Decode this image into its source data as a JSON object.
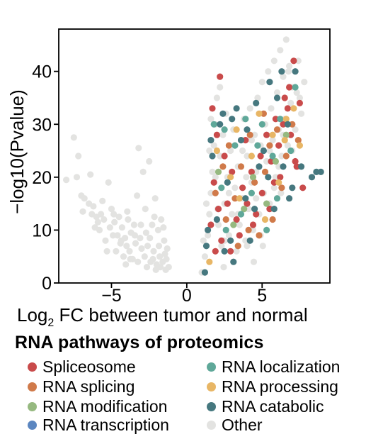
{
  "chart_data": {
    "type": "scatter",
    "xlabel": "Log",
    "xlabel_sub": "2",
    "xlabel_rest": " FC between tumor and normal",
    "ylabel": "−log10(Pvalue)",
    "xlim": [
      -8.5,
      9.5
    ],
    "ylim": [
      0,
      48
    ],
    "xticks": [
      {
        "value": -5,
        "label": "−5"
      },
      {
        "value": 0,
        "label": "0"
      },
      {
        "value": 5,
        "label": "5"
      }
    ],
    "yticks": [
      {
        "value": 0,
        "label": "0"
      },
      {
        "value": 10,
        "label": "10"
      },
      {
        "value": 20,
        "label": "20"
      },
      {
        "value": 30,
        "label": "30"
      },
      {
        "value": 40,
        "label": "40"
      }
    ],
    "legend_title": "RNA pathways of proteomics",
    "legend_placement": "bottom",
    "grid": false,
    "series": [
      {
        "name": "Other",
        "color": "#e3e3e1",
        "points": [
          [
            -8.0,
            19.5
          ],
          [
            -7.5,
            27.5
          ],
          [
            -7.2,
            24
          ],
          [
            -7.0,
            16.5
          ],
          [
            -6.8,
            16
          ],
          [
            -6.5,
            15
          ],
          [
            -6.4,
            20.5
          ],
          [
            -6.3,
            13
          ],
          [
            -6.1,
            10.5
          ],
          [
            -6.0,
            12.5
          ],
          [
            -5.9,
            11.5
          ],
          [
            -5.7,
            13
          ],
          [
            -5.5,
            12
          ],
          [
            -5.4,
            8
          ],
          [
            -5.3,
            6
          ],
          [
            -5.2,
            19
          ],
          [
            -5.1,
            10.5
          ],
          [
            -5.0,
            14
          ],
          [
            -4.9,
            9
          ],
          [
            -4.8,
            11.5
          ],
          [
            -4.7,
            6
          ],
          [
            -4.6,
            9
          ],
          [
            -4.5,
            12.5
          ],
          [
            -4.4,
            7.5
          ],
          [
            -4.3,
            10.5
          ],
          [
            -4.2,
            5
          ],
          [
            -4.1,
            8.5
          ],
          [
            -4.0,
            7
          ],
          [
            -3.9,
            12
          ],
          [
            -3.8,
            6
          ],
          [
            -3.7,
            9.5
          ],
          [
            -3.6,
            4.5
          ],
          [
            -3.5,
            11
          ],
          [
            -3.4,
            7.5
          ],
          [
            -3.3,
            16.5
          ],
          [
            -3.2,
            25.5
          ],
          [
            -3.1,
            8.5
          ],
          [
            -3.0,
            6.5
          ],
          [
            -2.9,
            21
          ],
          [
            -2.8,
            5
          ],
          [
            -2.7,
            9.5
          ],
          [
            -2.6,
            7
          ],
          [
            -2.5,
            23
          ],
          [
            -2.4,
            4
          ],
          [
            -2.3,
            11
          ],
          [
            -2.2,
            6
          ],
          [
            -2.1,
            16
          ],
          [
            -2.0,
            3.5
          ],
          [
            -1.9,
            10
          ],
          [
            -1.8,
            5
          ],
          [
            -1.7,
            12
          ],
          [
            -1.6,
            4
          ],
          [
            -1.5,
            8
          ],
          [
            -1.4,
            2.5
          ],
          [
            -1.3,
            6.5
          ],
          [
            -1.2,
            3
          ],
          [
            -7.3,
            20
          ],
          [
            -6.9,
            13.5
          ],
          [
            -6.2,
            14.5
          ],
          [
            -5.8,
            10
          ],
          [
            -5.6,
            15.5
          ],
          [
            -4.85,
            13
          ],
          [
            -4.35,
            8
          ],
          [
            -3.95,
            13.5
          ],
          [
            -3.45,
            9
          ],
          [
            -3.05,
            11
          ],
          [
            -2.75,
            14
          ],
          [
            -2.45,
            8.5
          ],
          [
            -2.15,
            12.5
          ],
          [
            -1.85,
            7
          ],
          [
            -1.55,
            10.5
          ],
          [
            -1.45,
            5.5
          ],
          [
            -2.25,
            4.5
          ],
          [
            -2.65,
            3
          ],
          [
            -3.25,
            4
          ],
          [
            -2.05,
            2.5
          ],
          [
            -1.75,
            3
          ],
          [
            -1.35,
            4.5
          ],
          [
            -3.75,
            4.5
          ],
          [
            -4.05,
            3.5
          ],
          [
            1.0,
            2
          ],
          [
            1.2,
            5
          ],
          [
            1.4,
            9
          ],
          [
            1.5,
            13
          ],
          [
            1.6,
            17
          ],
          [
            1.7,
            21
          ],
          [
            1.8,
            26
          ],
          [
            1.9,
            30
          ],
          [
            2.0,
            35
          ],
          [
            2.1,
            11
          ],
          [
            2.2,
            24
          ],
          [
            2.3,
            7
          ],
          [
            2.4,
            28
          ],
          [
            2.5,
            15
          ],
          [
            2.6,
            32
          ],
          [
            2.7,
            20
          ],
          [
            2.8,
            9
          ],
          [
            2.9,
            25
          ],
          [
            3.0,
            13
          ],
          [
            3.1,
            29
          ],
          [
            3.2,
            18
          ],
          [
            3.3,
            6
          ],
          [
            3.4,
            22
          ],
          [
            3.5,
            11
          ],
          [
            3.6,
            27
          ],
          [
            3.7,
            16
          ],
          [
            3.8,
            31
          ],
          [
            3.9,
            8
          ],
          [
            4.0,
            24
          ],
          [
            4.1,
            14
          ],
          [
            4.2,
            33
          ],
          [
            4.3,
            19
          ],
          [
            4.4,
            10
          ],
          [
            4.5,
            28
          ],
          [
            4.6,
            21
          ],
          [
            4.7,
            35
          ],
          [
            4.8,
            13
          ],
          [
            4.9,
            26
          ],
          [
            5.0,
            38
          ],
          [
            5.1,
            17
          ],
          [
            5.2,
            30
          ],
          [
            5.3,
            23
          ],
          [
            5.4,
            40
          ],
          [
            5.5,
            15
          ],
          [
            5.6,
            33
          ],
          [
            5.7,
            27
          ],
          [
            5.8,
            42
          ],
          [
            5.9,
            20
          ],
          [
            6.0,
            36
          ],
          [
            6.1,
            29
          ],
          [
            6.2,
            44
          ],
          [
            6.3,
            24
          ],
          [
            6.4,
            39
          ],
          [
            6.5,
            31
          ],
          [
            6.6,
            46
          ],
          [
            6.7,
            26
          ],
          [
            6.8,
            41
          ],
          [
            6.9,
            34
          ],
          [
            7.0,
            37
          ],
          [
            7.2,
            29
          ],
          [
            7.4,
            42
          ],
          [
            7.6,
            32
          ],
          [
            7.8,
            38
          ],
          [
            1.3,
            15
          ],
          [
            1.6,
            31
          ],
          [
            1.9,
            20
          ],
          [
            2.2,
            37
          ],
          [
            2.5,
            8
          ],
          [
            2.8,
            17
          ],
          [
            3.1,
            4
          ],
          [
            3.4,
            13
          ],
          [
            3.7,
            25
          ],
          [
            4.0,
            7
          ],
          [
            4.3,
            27
          ],
          [
            4.6,
            16
          ],
          [
            4.9,
            9
          ],
          [
            5.2,
            12
          ],
          [
            5.5,
            25
          ],
          [
            5.8,
            18
          ],
          [
            6.1,
            22
          ],
          [
            6.4,
            28
          ],
          [
            6.7,
            33
          ],
          [
            7.0,
            25
          ],
          [
            7.3,
            36
          ],
          [
            1.1,
            8
          ],
          [
            1.5,
            25
          ],
          [
            2.05,
            14
          ],
          [
            2.45,
            3
          ],
          [
            3.95,
            20
          ],
          [
            4.45,
            4
          ],
          [
            5.05,
            7
          ],
          [
            6.25,
            17
          ],
          [
            6.75,
            40
          ],
          [
            7.5,
            35
          ]
        ]
      },
      {
        "name": "Spliceosome",
        "color": "#c94b4b",
        "points": [
          [
            2.2,
            39
          ],
          [
            1.7,
            33
          ],
          [
            2.0,
            28
          ],
          [
            1.8,
            19
          ],
          [
            2.5,
            24
          ],
          [
            2.1,
            14
          ],
          [
            1.6,
            11
          ],
          [
            2.3,
            8
          ],
          [
            3.0,
            21
          ],
          [
            3.3,
            12
          ],
          [
            3.7,
            18
          ],
          [
            4.0,
            15
          ],
          [
            4.3,
            21
          ],
          [
            4.6,
            13
          ],
          [
            4.9,
            24
          ],
          [
            5.0,
            17
          ],
          [
            5.3,
            28
          ],
          [
            5.6,
            23
          ],
          [
            5.8,
            19
          ],
          [
            6.1,
            26
          ],
          [
            6.4,
            30
          ],
          [
            6.7,
            33
          ],
          [
            6.9,
            28
          ],
          [
            7.2,
            23
          ],
          [
            7.5,
            34
          ],
          [
            7.3,
            22
          ],
          [
            7.7,
            18
          ],
          [
            6.5,
            35
          ],
          [
            5.9,
            31
          ],
          [
            4.4,
            11
          ],
          [
            3.5,
            9
          ],
          [
            2.7,
            15
          ],
          [
            2.9,
            6
          ],
          [
            3.9,
            27
          ],
          [
            1.9,
            6
          ],
          [
            5.5,
            14
          ],
          [
            6.2,
            20
          ],
          [
            7.1,
            42
          ],
          [
            6.8,
            37
          ]
        ]
      },
      {
        "name": "RNA splicing",
        "color": "#d07a4a",
        "points": [
          [
            1.9,
            17
          ],
          [
            2.4,
            22
          ],
          [
            2.6,
            12
          ],
          [
            3.2,
            16
          ],
          [
            3.6,
            22
          ],
          [
            4.1,
            10
          ],
          [
            4.5,
            19
          ],
          [
            4.8,
            9
          ],
          [
            5.2,
            21
          ],
          [
            5.5,
            26
          ],
          [
            5.7,
            12
          ],
          [
            6.0,
            29
          ],
          [
            6.3,
            18
          ],
          [
            6.6,
            24
          ],
          [
            7.0,
            30
          ],
          [
            7.4,
            27
          ],
          [
            5.1,
            32
          ],
          [
            4.2,
            28
          ],
          [
            3.4,
            7
          ],
          [
            2.8,
            26
          ]
        ]
      },
      {
        "name": "RNA modification",
        "color": "#96b980",
        "points": [
          [
            2.1,
            21
          ],
          [
            3.1,
            11
          ],
          [
            4.4,
            20
          ],
          [
            5.3,
            15
          ],
          [
            5.9,
            23
          ],
          [
            6.6,
            28
          ],
          [
            3.8,
            14
          ]
        ]
      },
      {
        "name": "RNA localization",
        "color": "#5fa899",
        "points": [
          [
            1.8,
            30
          ],
          [
            2.3,
            18
          ],
          [
            2.5,
            29
          ],
          [
            3.2,
            26
          ],
          [
            3.6,
            13
          ],
          [
            4.3,
            17
          ],
          [
            4.7,
            26
          ],
          [
            5.3,
            10
          ],
          [
            5.7,
            24
          ],
          [
            6.2,
            31
          ],
          [
            6.9,
            25
          ],
          [
            7.2,
            37
          ],
          [
            5.0,
            30
          ],
          [
            3.9,
            31
          ],
          [
            2.6,
            10
          ],
          [
            6.0,
            16
          ]
        ]
      },
      {
        "name": "RNA processing",
        "color": "#e8b665",
        "points": [
          [
            1.5,
            4
          ],
          [
            2.0,
            25
          ],
          [
            2.9,
            20
          ],
          [
            3.5,
            16
          ],
          [
            4.3,
            24
          ],
          [
            5.2,
            12
          ],
          [
            5.7,
            28
          ],
          [
            6.1,
            19
          ],
          [
            6.6,
            31
          ],
          [
            7.1,
            33
          ],
          [
            6.5,
            27
          ],
          [
            4.8,
            32
          ],
          [
            3.3,
            29
          ],
          [
            7.5,
            26
          ]
        ]
      },
      {
        "name": "RNA catabolic",
        "color": "#46787f",
        "points": [
          [
            1.2,
            2
          ],
          [
            1.4,
            10
          ],
          [
            1.7,
            24
          ],
          [
            2.0,
            12
          ],
          [
            2.4,
            32
          ],
          [
            2.7,
            19
          ],
          [
            2.9,
            8
          ],
          [
            3.3,
            33
          ],
          [
            3.6,
            27
          ],
          [
            3.9,
            16
          ],
          [
            4.2,
            8
          ],
          [
            4.5,
            14
          ],
          [
            4.8,
            22
          ],
          [
            5.1,
            25
          ],
          [
            5.4,
            20
          ],
          [
            5.8,
            14
          ],
          [
            6.0,
            35
          ],
          [
            6.4,
            22
          ],
          [
            6.8,
            16
          ],
          [
            7.2,
            40
          ],
          [
            7.6,
            22
          ],
          [
            8.6,
            21
          ],
          [
            8.9,
            21
          ],
          [
            8.3,
            20
          ],
          [
            1.3,
            7
          ],
          [
            1.6,
            27
          ],
          [
            2.5,
            6
          ],
          [
            3.1,
            4
          ],
          [
            4.0,
            29
          ],
          [
            4.6,
            34
          ],
          [
            5.5,
            38
          ],
          [
            6.3,
            40
          ],
          [
            6.7,
            30
          ],
          [
            7.0,
            18
          ],
          [
            3.0,
            31
          ],
          [
            2.2,
            30
          ]
        ]
      },
      {
        "name": "RNA transcription",
        "color": "#5b86c0",
        "points": []
      }
    ]
  },
  "legend": {
    "items": [
      {
        "label": "Spliceosome",
        "color": "#c94b4b"
      },
      {
        "label": "RNA localization",
        "color": "#5fa899"
      },
      {
        "label": "RNA splicing",
        "color": "#d07a4a"
      },
      {
        "label": "RNA processing",
        "color": "#e8b665"
      },
      {
        "label": "RNA modification",
        "color": "#96b980"
      },
      {
        "label": "RNA catabolic",
        "color": "#46787f"
      },
      {
        "label": "RNA transcription",
        "color": "#5b86c0"
      },
      {
        "label": "Other",
        "color": "#e3e3e1"
      }
    ]
  }
}
